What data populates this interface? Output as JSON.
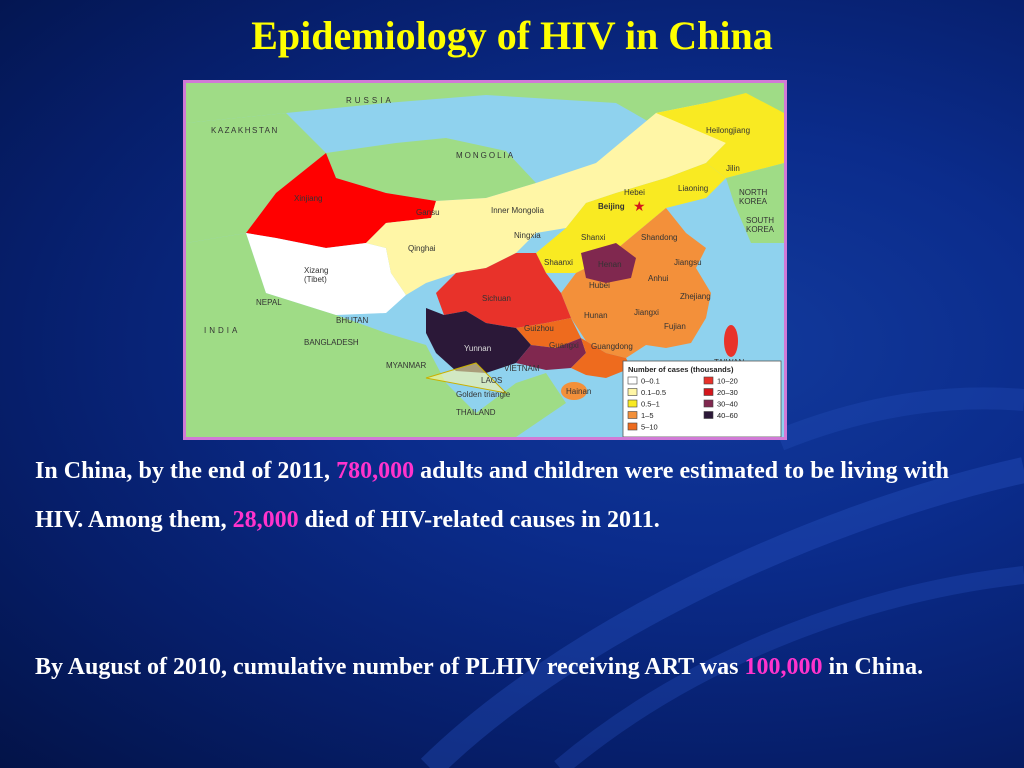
{
  "slide": {
    "title": "Epidemiology of HIV in China",
    "colors": {
      "title": "#ffff00",
      "highlight": "#ff33cc",
      "text": "#ffffff",
      "frame": "#d17ad6"
    }
  },
  "map": {
    "countries": {
      "russia": "RUSSIA",
      "kazakhstan": "KAZAKHSTAN",
      "mongolia": "MONGOLIA",
      "north_korea": "NORTH\nKOREA",
      "south_korea": "SOUTH\nKOREA",
      "nepal": "NEPAL",
      "bhutan": "BHUTAN",
      "india": "INDIA",
      "bangladesh": "BANGLADESH",
      "myanmar": "MYANMAR",
      "vietnam": "VIETNAM",
      "laos": "LAOS",
      "golden_triangle": "Golden triangle",
      "thailand": "THAILAND",
      "taiwan": "TAIWAN"
    },
    "provinces": {
      "xinjiang": "Xinjiang",
      "xizang": "Xizang\n(Tibet)",
      "qinghai": "Qinghai",
      "gansu": "Gansu",
      "inner_mongolia": "Inner Mongolia",
      "ningxia": "Ningxia",
      "shaanxi": "Shaanxi",
      "shanxi": "Shanxi",
      "hebei": "Hebei",
      "beijing": "Beijing",
      "heilongjiang": "Heilongjiang",
      "jilin": "Jilin",
      "liaoning": "Liaoning",
      "shandong": "Shandong",
      "henan": "Henan",
      "jiangsu": "Jiangsu",
      "anhui": "Anhui",
      "hubei": "Hubei",
      "zhejiang": "Zhejiang",
      "sichuan": "Sichuan",
      "hunan": "Hunan",
      "jiangxi": "Jiangxi",
      "fujian": "Fujian",
      "guizhou": "Guizhou",
      "yunnan": "Yunnan",
      "guangxi": "Guangxi",
      "guangdong": "Guangdong",
      "hainan": "Hainan"
    },
    "legend": {
      "title": "Number of cases (thousands)",
      "items": [
        {
          "label": "0–0.1",
          "color": "#ffffff"
        },
        {
          "label": "10–20",
          "color": "#e8322a"
        },
        {
          "label": "0.1–0.5",
          "color": "#fff6a6"
        },
        {
          "label": "20–30",
          "color": "#d4161b"
        },
        {
          "label": "0.5–1",
          "color": "#f9ea22"
        },
        {
          "label": "30–40",
          "color": "#80284f"
        },
        {
          "label": "1–5",
          "color": "#f3903a"
        },
        {
          "label": "40–60",
          "color": "#2b1838"
        },
        {
          "label": "5–10",
          "color": "#ee6b1e"
        }
      ]
    }
  },
  "body": {
    "p1": {
      "t1": "In China, by the end of 2011,",
      "h1": "780,000",
      "t2": "adults and children were estimated to be living with HIV. Among them,",
      "h2": "28,000",
      "t3": "died of HIV-related causes in 2011."
    },
    "p2": {
      "t1": "By August of 2010, cumulative number of PLHIV receiving ART was",
      "h1": "100,000",
      "t2": "in China."
    }
  }
}
